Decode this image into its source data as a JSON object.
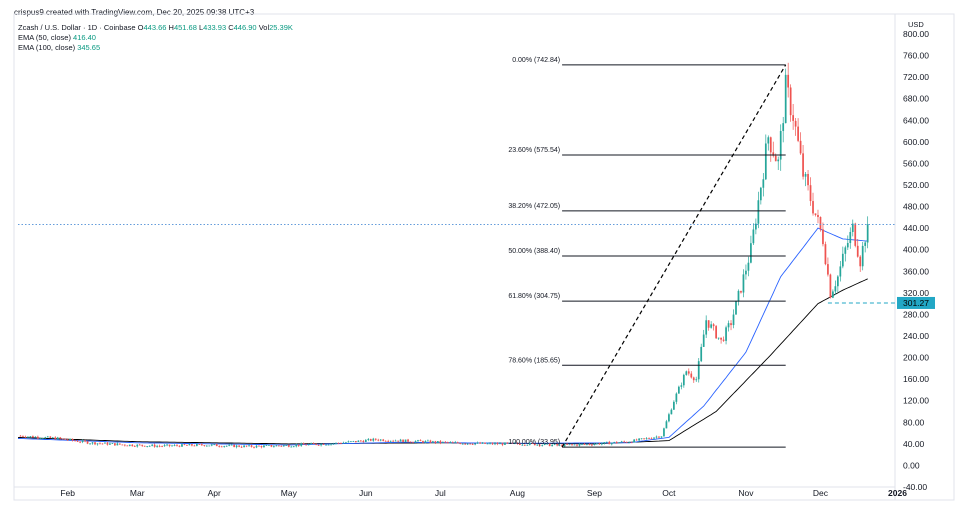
{
  "attribution": "crispus9 created with TradingView.com, Dec 20, 2025 09:38 UTC+3",
  "legend": {
    "symbol": "Zcash / U.S. Dollar · 1D · Coinbase",
    "ohlc": [
      {
        "key": "O",
        "value": "443.66"
      },
      {
        "key": "H",
        "value": "451.68"
      },
      {
        "key": "L",
        "value": "433.93"
      },
      {
        "key": "C",
        "value": "446.90"
      },
      {
        "key": "Vol",
        "value": "25.39K"
      }
    ],
    "ema50": {
      "label": "EMA (50, close)",
      "value": "416.40"
    },
    "ema100": {
      "label": "EMA (100, close)",
      "value": "345.65"
    }
  },
  "currency": "USD",
  "chart_data": {
    "type": "candlestick",
    "y_axis": {
      "min": -40,
      "max": 760,
      "step": 40,
      "ticks": [
        "-40.00",
        "0.00",
        "40.00",
        "80.00",
        "120.00",
        "160.00",
        "200.00",
        "240.00",
        "280.00",
        "320.00",
        "360.00",
        "400.00",
        "440.00",
        "480.00",
        "520.00",
        "560.00",
        "600.00",
        "640.00",
        "680.00",
        "720.00",
        "760.00",
        "800.00"
      ]
    },
    "x_axis": {
      "start": "2025-01-12",
      "end": "2025-12-31",
      "ticks": [
        {
          "label": "Feb",
          "date": "2025-02-01"
        },
        {
          "label": "Mar",
          "date": "2025-03-01"
        },
        {
          "label": "Apr",
          "date": "2025-04-01"
        },
        {
          "label": "May",
          "date": "2025-05-01"
        },
        {
          "label": "Jun",
          "date": "2025-06-01"
        },
        {
          "label": "Jul",
          "date": "2025-07-01"
        },
        {
          "label": "Aug",
          "date": "2025-08-01"
        },
        {
          "label": "Sep",
          "date": "2025-09-01"
        },
        {
          "label": "Oct",
          "date": "2025-10-01"
        },
        {
          "label": "Nov",
          "date": "2025-11-01"
        },
        {
          "label": "Dec",
          "date": "2025-12-01"
        },
        {
          "label": "2026",
          "date": "2026-01-01"
        }
      ]
    },
    "price_series": [
      [
        "2025-01-12",
        55
      ],
      [
        "2025-01-28",
        50
      ],
      [
        "2025-02-10",
        42
      ],
      [
        "2025-02-25",
        38
      ],
      [
        "2025-03-10",
        36
      ],
      [
        "2025-03-28",
        38
      ],
      [
        "2025-04-15",
        35
      ],
      [
        "2025-05-01",
        37
      ],
      [
        "2025-05-20",
        41
      ],
      [
        "2025-06-05",
        48
      ],
      [
        "2025-06-20",
        45
      ],
      [
        "2025-07-05",
        42
      ],
      [
        "2025-07-20",
        40
      ],
      [
        "2025-08-05",
        40
      ],
      [
        "2025-08-18",
        37
      ],
      [
        "2025-09-01",
        40
      ],
      [
        "2025-09-15",
        44
      ],
      [
        "2025-09-28",
        55
      ],
      [
        "2025-10-03",
        120
      ],
      [
        "2025-10-08",
        175
      ],
      [
        "2025-10-12",
        160
      ],
      [
        "2025-10-16",
        270
      ],
      [
        "2025-10-22",
        230
      ],
      [
        "2025-10-26",
        265
      ],
      [
        "2025-10-30",
        330
      ],
      [
        "2025-11-03",
        400
      ],
      [
        "2025-11-07",
        520
      ],
      [
        "2025-11-10",
        610
      ],
      [
        "2025-11-14",
        560
      ],
      [
        "2025-11-17",
        700
      ],
      [
        "2025-11-20",
        650
      ],
      [
        "2025-11-24",
        540
      ],
      [
        "2025-11-28",
        480
      ],
      [
        "2025-12-02",
        420
      ],
      [
        "2025-12-05",
        320
      ],
      [
        "2025-12-08",
        350
      ],
      [
        "2025-12-11",
        400
      ],
      [
        "2025-12-14",
        440
      ],
      [
        "2025-12-17",
        380
      ],
      [
        "2025-12-20",
        447
      ]
    ],
    "ema50_series": [
      [
        "2025-01-12",
        50
      ],
      [
        "2025-03-01",
        42
      ],
      [
        "2025-05-01",
        38
      ],
      [
        "2025-06-15",
        43
      ],
      [
        "2025-08-01",
        41
      ],
      [
        "2025-09-15",
        42
      ],
      [
        "2025-10-01",
        52
      ],
      [
        "2025-10-15",
        110
      ],
      [
        "2025-11-01",
        210
      ],
      [
        "2025-11-15",
        350
      ],
      [
        "2025-11-30",
        440
      ],
      [
        "2025-12-10",
        420
      ],
      [
        "2025-12-20",
        416
      ]
    ],
    "ema100_series": [
      [
        "2025-01-12",
        52
      ],
      [
        "2025-03-01",
        44
      ],
      [
        "2025-05-01",
        40
      ],
      [
        "2025-07-01",
        42
      ],
      [
        "2025-09-01",
        40
      ],
      [
        "2025-10-01",
        46
      ],
      [
        "2025-10-20",
        100
      ],
      [
        "2025-11-10",
        200
      ],
      [
        "2025-11-30",
        300
      ],
      [
        "2025-12-10",
        325
      ],
      [
        "2025-12-20",
        346
      ]
    ],
    "current_price": 446.9,
    "fibonacci": {
      "start_date": "2025-08-19",
      "end_date": "2025-11-17",
      "trend_from": {
        "date": "2025-08-19",
        "value": 33.95
      },
      "trend_to": {
        "date": "2025-11-17",
        "value": 742.84
      },
      "levels": [
        {
          "label": "0.00% (742.84)",
          "value": 742.84
        },
        {
          "label": "23.60% (575.54)",
          "value": 575.54
        },
        {
          "label": "38.20% (472.05)",
          "value": 472.05
        },
        {
          "label": "50.00% (388.40)",
          "value": 388.4
        },
        {
          "label": "61.80% (304.75)",
          "value": 304.75
        },
        {
          "label": "78.60% (185.65)",
          "value": 185.65
        },
        {
          "label": "100.00% (33.95)",
          "value": 33.95
        }
      ]
    },
    "support": {
      "label": "301.27",
      "value": 301.27,
      "from_date": "2025-12-04"
    },
    "colors": {
      "up": "#26a69a",
      "down": "#ef5350",
      "ema50": "#2962ff",
      "ema100": "#000000",
      "fib": "#131722",
      "support_tag": "#22a7c5",
      "current_price_line": "#4f8fd6"
    }
  }
}
